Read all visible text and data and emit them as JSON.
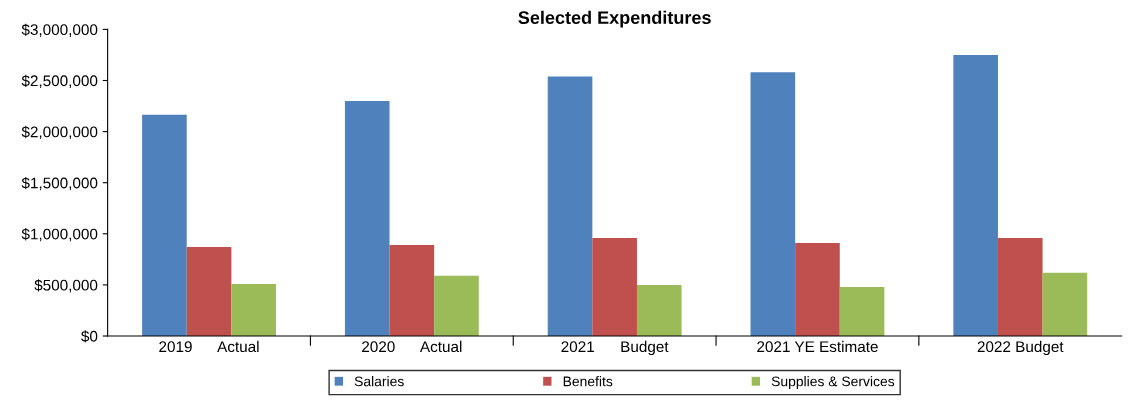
{
  "chart_data": {
    "type": "bar",
    "title": "Selected Expenditures",
    "categories": [
      "2019      Actual",
      "2020      Actual",
      "2021      Budget",
      "2021 YE Estimate",
      "2022 Budget"
    ],
    "series": [
      {
        "name": "Salaries",
        "color": "#4f81bd",
        "values": [
          2165000,
          2300000,
          2540000,
          2580000,
          2750000
        ]
      },
      {
        "name": "Benefits",
        "color": "#c0504d",
        "values": [
          870000,
          890000,
          960000,
          910000,
          960000
        ]
      },
      {
        "name": "Supplies & Services",
        "color": "#9bbb59",
        "values": [
          510000,
          590000,
          500000,
          480000,
          620000
        ]
      }
    ],
    "ylim": [
      0,
      3000000
    ],
    "yticks": [
      {
        "value": 0,
        "label": "$0"
      },
      {
        "value": 500000,
        "label": "$500,000"
      },
      {
        "value": 1000000,
        "label": "$1,000,000"
      },
      {
        "value": 1500000,
        "label": "$1,500,000"
      },
      {
        "value": 2000000,
        "label": "$2,000,000"
      },
      {
        "value": 2500000,
        "label": "$2,500,000"
      },
      {
        "value": 3000000,
        "label": "$3,000,000"
      }
    ],
    "grid": false,
    "legend": "bottom"
  }
}
